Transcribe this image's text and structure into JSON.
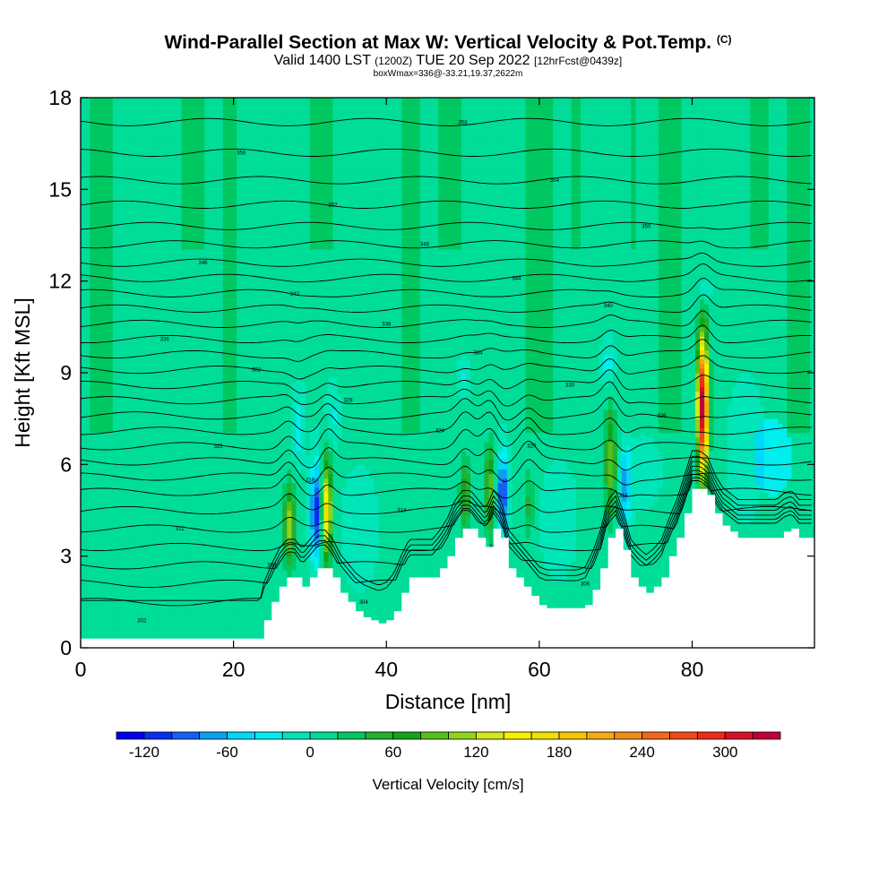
{
  "chart_data": {
    "type": "heatmap",
    "title": "Wind-Parallel Section at Max W: Vertical Velocity & Pot.Temp.",
    "title_mark": "(C)",
    "subtitle_main_1": "Valid 1400 LST",
    "subtitle_utc": "(1200Z)",
    "subtitle_main_2": "TUE 20 Sep 2022",
    "subtitle_fcst": "[12hrFcst@0439z]",
    "box_info": "boxWmax=336@-33.21,19.37,2622m",
    "xlabel": "Distance [nm]",
    "ylabel": "Height [Kft MSL]",
    "xlim": [
      0,
      96
    ],
    "ylim": [
      0,
      18
    ],
    "xticks": [
      0,
      20,
      40,
      60,
      80
    ],
    "yticks": [
      0,
      3,
      6,
      9,
      12,
      15,
      18
    ],
    "colorbar": {
      "label": "Vertical Velocity [cm/s]",
      "ticks": [
        -120,
        -60,
        0,
        60,
        120,
        180,
        240,
        300
      ],
      "levels": [
        -140,
        -120,
        -100,
        -80,
        -60,
        -40,
        -20,
        0,
        20,
        40,
        60,
        80,
        100,
        120,
        140,
        160,
        180,
        200,
        220,
        240,
        260,
        280,
        300,
        320,
        340
      ],
      "colors": [
        "#0000ee",
        "#0a2ff0",
        "#1560f2",
        "#0aa0f0",
        "#00d8f8",
        "#00eeee",
        "#00e6b8",
        "#00dd99",
        "#00c860",
        "#22b030",
        "#11a51a",
        "#55c01a",
        "#8ed41a",
        "#d2e81a",
        "#f6f200",
        "#f0e000",
        "#f2c800",
        "#f5aa10",
        "#f08c18",
        "#f06818",
        "#ee4a18",
        "#ee2a18",
        "#d81028",
        "#c00038"
      ]
    },
    "terrain": {
      "x": [
        0,
        23.5,
        24,
        25,
        26,
        27,
        28,
        29,
        30,
        31,
        32,
        33,
        34,
        35,
        36,
        37,
        38,
        39,
        40,
        41,
        42,
        43,
        44,
        45,
        46,
        47,
        48,
        49,
        50,
        51,
        52,
        53,
        54,
        55,
        56,
        57,
        58,
        59,
        60,
        61,
        62,
        63,
        64,
        65,
        66,
        67,
        68,
        69,
        70,
        71,
        72,
        73,
        74,
        75,
        76,
        77,
        78,
        79,
        80,
        81,
        82,
        83,
        84,
        85,
        86,
        87,
        88,
        89,
        90,
        91,
        92,
        93,
        94,
        95,
        96
      ],
      "h": [
        0.3,
        0.3,
        0.9,
        1.5,
        2.0,
        2.3,
        2.3,
        2.0,
        2.3,
        2.6,
        2.6,
        2.3,
        1.8,
        1.5,
        1.2,
        1.0,
        0.9,
        0.8,
        0.9,
        1.2,
        1.8,
        2.3,
        2.3,
        2.3,
        2.3,
        2.6,
        3.0,
        3.6,
        3.9,
        3.9,
        3.6,
        3.3,
        3.9,
        3.6,
        2.6,
        2.3,
        2.0,
        1.7,
        1.4,
        1.3,
        1.3,
        1.3,
        1.3,
        1.3,
        1.4,
        1.9,
        2.6,
        3.6,
        3.9,
        3.2,
        2.3,
        2.0,
        1.8,
        2.0,
        2.3,
        3.0,
        3.6,
        4.4,
        5.2,
        5.2,
        5.0,
        4.4,
        4.0,
        3.8,
        3.6,
        3.6,
        3.6,
        3.6,
        3.6,
        3.6,
        3.8,
        3.9,
        3.6,
        3.6,
        3.6
      ]
    },
    "updrafts": [
      {
        "x": 27.3,
        "zb": 2.4,
        "zt": 5.6,
        "w": 110
      },
      {
        "x": 32.2,
        "zb": 2.6,
        "zt": 6.4,
        "w": 170
      },
      {
        "x": 50.3,
        "zb": 3.5,
        "zt": 6.6,
        "w": 70
      },
      {
        "x": 53.6,
        "zb": 3.4,
        "zt": 7.0,
        "w": 90
      },
      {
        "x": 58.6,
        "zb": 3.2,
        "zt": 6.2,
        "w": 40
      },
      {
        "x": 69.3,
        "zb": 3.8,
        "zt": 8.3,
        "w": 90
      },
      {
        "x": 81.4,
        "zb": 5.2,
        "zt": 10.6,
        "w": 336
      }
    ],
    "downdrafts": [
      {
        "x": 30.8,
        "zb": 2.6,
        "zt": 6.3,
        "w": -120
      },
      {
        "x": 55.2,
        "zb": 3.6,
        "zt": 6.6,
        "w": -110
      },
      {
        "x": 71.2,
        "zb": 3.6,
        "zt": 6.6,
        "w": -70
      },
      {
        "x": 28.5,
        "zb": 6.0,
        "zt": 8.5,
        "w": -40
      },
      {
        "x": 33.0,
        "zb": 6.5,
        "zt": 8.6,
        "w": -30
      },
      {
        "x": 50.0,
        "zb": 8.2,
        "zt": 9.5,
        "w": -25
      },
      {
        "x": 69.0,
        "zb": 8.4,
        "zt": 10.2,
        "w": -35
      },
      {
        "x": 81.6,
        "zb": 11.2,
        "zt": 12.2,
        "w": -30
      }
    ],
    "light_zones": [
      {
        "x": 36.5,
        "zb": 1.8,
        "zt": 6.0,
        "w": -20
      },
      {
        "x": 62.5,
        "zb": 2.2,
        "zt": 6.2,
        "w": -20
      },
      {
        "x": 87.0,
        "zb": 4.0,
        "zt": 9.0,
        "w": -20
      },
      {
        "x": 90.5,
        "zb": 5.0,
        "zt": 7.5,
        "w": -35
      },
      {
        "x": 73.5,
        "zb": 4.5,
        "zt": 7.0,
        "w": -15
      }
    ],
    "theta_values": [
      302,
      304,
      306,
      308,
      310,
      312,
      314,
      316,
      318,
      320,
      322,
      324,
      326,
      328,
      330,
      332,
      334,
      336,
      338,
      340,
      342,
      344,
      346,
      348,
      350,
      352,
      354,
      356,
      358
    ],
    "theta_base_heights": [
      0.9,
      1.5,
      2.1,
      2.7,
      3.3,
      3.9,
      4.5,
      5.1,
      5.6,
      6.1,
      6.6,
      7.1,
      7.6,
      8.1,
      8.6,
      9.1,
      9.6,
      10.1,
      10.6,
      11.1,
      11.6,
      12.1,
      12.6,
      13.2,
      13.8,
      14.5,
      15.3,
      16.2,
      17.2
    ]
  }
}
